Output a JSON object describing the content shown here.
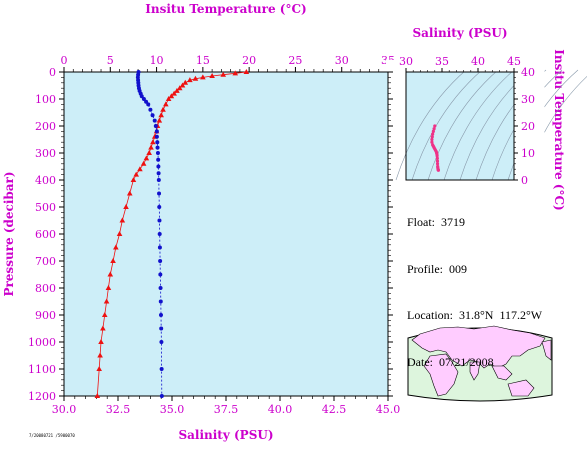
{
  "colors": {
    "axis_text": "#cc00cc",
    "plot_bg": "#cdeef8",
    "temperature": "#ee1111",
    "salinity": "#1111cc",
    "ts_curve": "#ee3388",
    "map_land": "#ffccff",
    "map_ocean": "#ddf5dd"
  },
  "footer_code": "7/20080721  /5900070",
  "info": {
    "float": "Float:  3719",
    "profile": "Profile:  009",
    "location": "Location:  31.8°N  117.2°W",
    "date": "Date:  07/21/2008"
  },
  "chart_data": [
    {
      "type": "line",
      "name": "profile",
      "title": "",
      "top_xlabel": "Insitu Temperature (°C)",
      "top_xlim": [
        0,
        35
      ],
      "top_xticks": [
        "0",
        "5",
        "10",
        "15",
        "20",
        "25",
        "30",
        "35"
      ],
      "bottom_xlabel": "Salinity (PSU)",
      "bottom_xlim": [
        30.0,
        45.0
      ],
      "bottom_xticks": [
        "30.0",
        "32.5",
        "35.0",
        "37.5",
        "40.0",
        "42.5",
        "45.0"
      ],
      "ylabel": "Pressure (decibar)",
      "ylim": [
        0,
        1200
      ],
      "y_inverted": true,
      "yticks": [
        "0",
        "100",
        "200",
        "300",
        "400",
        "500",
        "600",
        "700",
        "800",
        "900",
        "1000",
        "1100",
        "1200"
      ],
      "grid": false,
      "series": [
        {
          "marker": "triangle",
          "axis": "top",
          "color": "#ee1111",
          "points": [
            [
              19.7,
              0
            ],
            [
              18.5,
              5
            ],
            [
              17.2,
              10
            ],
            [
              16.0,
              15
            ],
            [
              15.0,
              20
            ],
            [
              14.2,
              25
            ],
            [
              13.6,
              30
            ],
            [
              13.1,
              40
            ],
            [
              12.8,
              50
            ],
            [
              12.5,
              60
            ],
            [
              12.2,
              70
            ],
            [
              11.9,
              80
            ],
            [
              11.6,
              90
            ],
            [
              11.3,
              100
            ],
            [
              11.0,
              120
            ],
            [
              10.7,
              140
            ],
            [
              10.5,
              160
            ],
            [
              10.3,
              180
            ],
            [
              10.1,
              200
            ],
            [
              10.0,
              220
            ],
            [
              9.8,
              240
            ],
            [
              9.6,
              260
            ],
            [
              9.4,
              280
            ],
            [
              9.2,
              300
            ],
            [
              8.9,
              320
            ],
            [
              8.6,
              340
            ],
            [
              8.2,
              360
            ],
            [
              7.8,
              380
            ],
            [
              7.5,
              400
            ],
            [
              7.1,
              450
            ],
            [
              6.7,
              500
            ],
            [
              6.3,
              550
            ],
            [
              6.0,
              600
            ],
            [
              5.6,
              650
            ],
            [
              5.3,
              700
            ],
            [
              5.0,
              750
            ],
            [
              4.8,
              800
            ],
            [
              4.6,
              850
            ],
            [
              4.4,
              900
            ],
            [
              4.2,
              950
            ],
            [
              4.0,
              1000
            ],
            [
              3.9,
              1050
            ],
            [
              3.8,
              1100
            ],
            [
              3.6,
              1200
            ]
          ]
        },
        {
          "marker": "circle",
          "axis": "bottom",
          "color": "#1111cc",
          "points": [
            [
              33.45,
              0
            ],
            [
              33.43,
              10
            ],
            [
              33.42,
              20
            ],
            [
              33.43,
              30
            ],
            [
              33.44,
              40
            ],
            [
              33.45,
              50
            ],
            [
              33.47,
              60
            ],
            [
              33.5,
              70
            ],
            [
              33.55,
              80
            ],
            [
              33.6,
              90
            ],
            [
              33.7,
              100
            ],
            [
              33.8,
              110
            ],
            [
              33.9,
              120
            ],
            [
              34.0,
              140
            ],
            [
              34.1,
              160
            ],
            [
              34.2,
              180
            ],
            [
              34.25,
              200
            ],
            [
              34.3,
              220
            ],
            [
              34.3,
              240
            ],
            [
              34.32,
              260
            ],
            [
              34.33,
              280
            ],
            [
              34.35,
              300
            ],
            [
              34.36,
              325
            ],
            [
              34.37,
              350
            ],
            [
              34.38,
              375
            ],
            [
              34.39,
              400
            ],
            [
              34.4,
              450
            ],
            [
              34.41,
              500
            ],
            [
              34.42,
              550
            ],
            [
              34.43,
              600
            ],
            [
              34.44,
              650
            ],
            [
              34.45,
              700
            ],
            [
              34.46,
              750
            ],
            [
              34.47,
              800
            ],
            [
              34.48,
              850
            ],
            [
              34.49,
              900
            ],
            [
              34.5,
              950
            ],
            [
              34.51,
              1000
            ],
            [
              34.52,
              1100
            ],
            [
              34.53,
              1200
            ]
          ]
        }
      ]
    },
    {
      "type": "scatter",
      "name": "ts_diagram",
      "title": "",
      "xlabel": "Salinity (PSU)",
      "xlim": [
        30,
        45
      ],
      "xticks": [
        "30",
        "35",
        "40",
        "45"
      ],
      "ylabel": "Insitu Temperature (°C)",
      "ylim": [
        0,
        40
      ],
      "yticks": [
        "0",
        "10",
        "20",
        "30",
        "40"
      ],
      "points": [
        [
          34.0,
          20
        ],
        [
          33.9,
          19
        ],
        [
          33.8,
          18
        ],
        [
          33.7,
          17
        ],
        [
          33.65,
          16
        ],
        [
          33.6,
          15
        ],
        [
          33.6,
          14
        ],
        [
          33.7,
          13
        ],
        [
          33.8,
          12.5
        ],
        [
          33.9,
          12
        ],
        [
          34.0,
          11.5
        ],
        [
          34.1,
          11
        ],
        [
          34.2,
          10.5
        ],
        [
          34.25,
          10
        ],
        [
          34.3,
          9.5
        ],
        [
          34.32,
          9
        ],
        [
          34.35,
          8
        ],
        [
          34.37,
          7
        ],
        [
          34.38,
          6
        ],
        [
          34.4,
          5
        ],
        [
          34.42,
          4.5
        ],
        [
          34.45,
          4
        ],
        [
          34.47,
          3.8
        ],
        [
          34.5,
          3.6
        ]
      ]
    }
  ]
}
